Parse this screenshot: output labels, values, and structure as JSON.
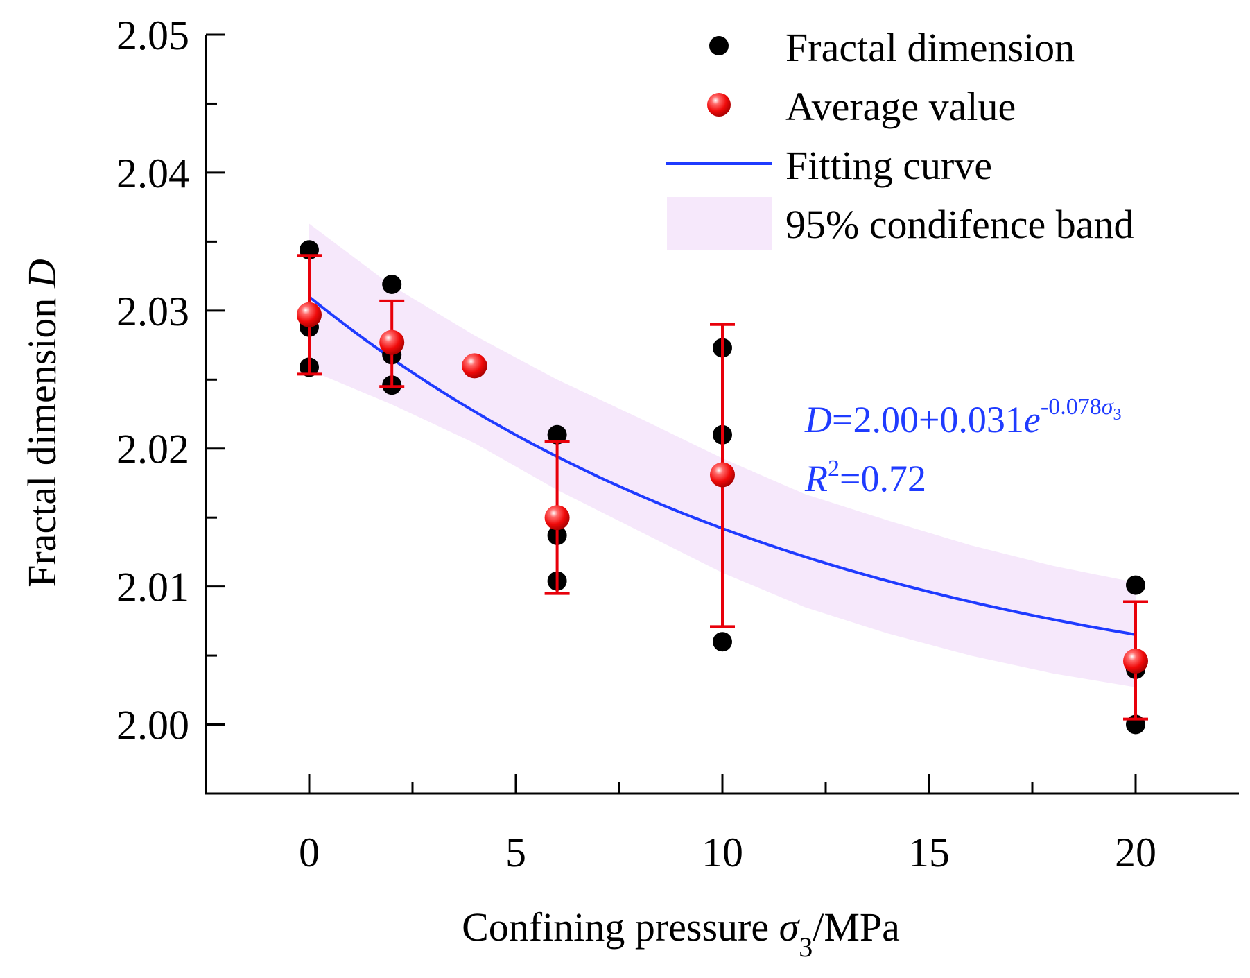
{
  "chart_data": {
    "type": "scatter",
    "title": "",
    "xlabel": {
      "main": "Confining pressure ",
      "symbol": "σ",
      "subscript": "3",
      "unit": "/MPa"
    },
    "ylabel": {
      "main": "Fractal dimension ",
      "symbol": "D"
    },
    "xlim": [
      -2.5,
      22.5
    ],
    "ylim": [
      1.995,
      2.05
    ],
    "x_ticks": [
      0,
      5,
      10,
      15,
      20
    ],
    "x_tick_labels": [
      "0",
      "5",
      "10",
      "15",
      "20"
    ],
    "y_ticks": [
      2.0,
      2.01,
      2.02,
      2.03,
      2.04,
      2.05
    ],
    "y_tick_labels": [
      "2.00",
      "2.01",
      "2.02",
      "2.03",
      "2.04",
      "2.05"
    ],
    "series": [
      {
        "name": "Fractal dimension",
        "kind": "points",
        "color": "#000000",
        "points": [
          [
            0,
            2.0344
          ],
          [
            0,
            2.0288
          ],
          [
            0,
            2.0259
          ],
          [
            2,
            2.0319
          ],
          [
            2,
            2.0268
          ],
          [
            2,
            2.0246
          ],
          [
            4,
            2.026
          ],
          [
            6,
            2.021
          ],
          [
            6,
            2.0137
          ],
          [
            6,
            2.0104
          ],
          [
            10,
            2.0273
          ],
          [
            10,
            2.021
          ],
          [
            10,
            2.006
          ],
          [
            20,
            2.0101
          ],
          [
            20,
            2.004
          ],
          [
            20,
            2.0
          ]
        ]
      },
      {
        "name": "Average value",
        "kind": "points-with-error",
        "color": "#e8000a",
        "points": [
          {
            "x": 0,
            "y": 2.0297,
            "lo": 2.0254,
            "hi": 2.034
          },
          {
            "x": 2,
            "y": 2.0277,
            "lo": 2.0245,
            "hi": 2.0307
          },
          {
            "x": 4,
            "y": 2.026,
            "lo": 2.0258,
            "hi": 2.0262
          },
          {
            "x": 6,
            "y": 2.015,
            "lo": 2.0095,
            "hi": 2.0205
          },
          {
            "x": 10,
            "y": 2.0181,
            "lo": 2.0071,
            "hi": 2.029
          },
          {
            "x": 20,
            "y": 2.0046,
            "lo": 2.0004,
            "hi": 2.0089
          }
        ]
      },
      {
        "name": "Fitting curve",
        "kind": "curve",
        "color": "#1f3bff",
        "model": {
          "a": 2.0,
          "b": 0.031,
          "k": -0.078,
          "x_from": 0,
          "x_to": 20
        }
      },
      {
        "name": "95% condifence band",
        "kind": "band",
        "color": "#f6e8fb",
        "x": [
          0,
          2,
          4,
          6,
          8,
          10,
          12,
          14,
          16,
          18,
          20
        ],
        "upper": [
          2.0363,
          2.0318,
          2.0282,
          2.025,
          2.0222,
          2.0193,
          2.0167,
          2.0148,
          2.013,
          2.0115,
          2.0103
        ],
        "lower": [
          2.0257,
          2.0232,
          2.0204,
          2.017,
          2.014,
          2.011,
          2.0085,
          2.0066,
          2.005,
          2.0037,
          2.0027
        ]
      }
    ],
    "legend": {
      "position": "top-right",
      "entries": [
        "Fractal dimension",
        "Average value",
        "Fitting curve",
        "95% condifence band"
      ]
    },
    "annotations": {
      "equation": {
        "lhs": "D",
        "rhs": "=2.00+0.031",
        "exp_base": "e",
        "exp_power": "-0.078",
        "exp_symbol": "σ",
        "exp_subscript": "3"
      },
      "r2": {
        "symbol": "R",
        "sup": "2",
        "value": "=0.72"
      },
      "color": "#1f3bff"
    },
    "grid": false
  }
}
